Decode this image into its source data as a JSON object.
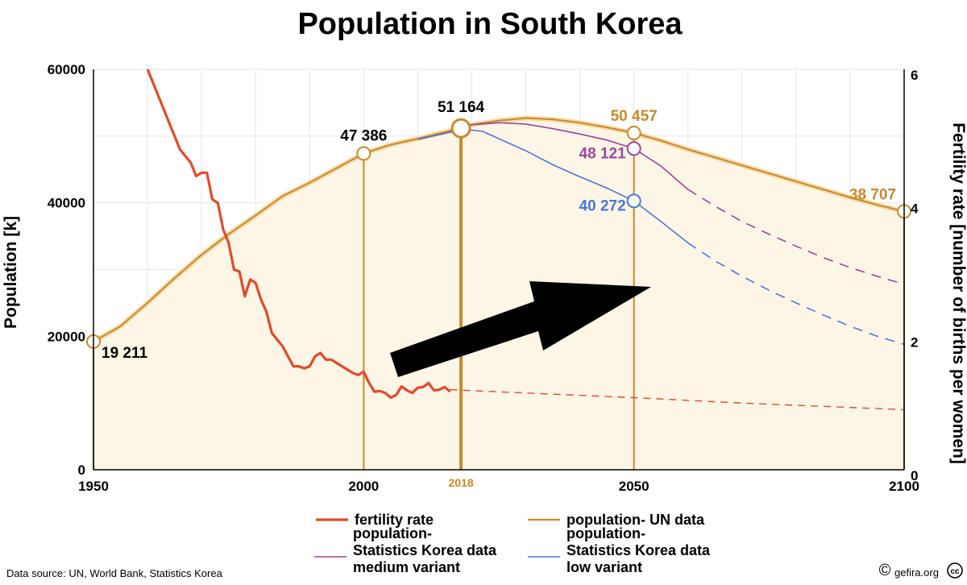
{
  "chart_data": {
    "type": "line",
    "title": "Population in South Korea",
    "xlabel": "",
    "ylabel": "Population [k]",
    "y2label": "Fertility rate [number of births per women]",
    "xlim": [
      1950,
      2100
    ],
    "ylim": [
      0,
      60000
    ],
    "y2lim": [
      0,
      6
    ],
    "x_ticks": [
      1950,
      2000,
      2050,
      2100
    ],
    "x_tick_labels": [
      "1950",
      "2000",
      "2050",
      "2100"
    ],
    "y_ticks": [
      0,
      20000,
      40000,
      60000
    ],
    "y_tick_labels": [
      "0",
      "20000",
      "40000",
      "60000"
    ],
    "y2_ticks": [
      0,
      2,
      4,
      6
    ],
    "y2_tick_labels": [
      "0",
      "2",
      "4",
      "6"
    ],
    "highlight_x": {
      "x": 2018,
      "label": "2018"
    },
    "grid": true,
    "series": [
      {
        "name": "population- UN data",
        "axis": "left",
        "color": "#c8892c",
        "fill": "#fdf6e6",
        "points": [
          [
            1950,
            19211
          ],
          [
            1955,
            21500
          ],
          [
            1960,
            25000
          ],
          [
            1965,
            28700
          ],
          [
            1970,
            32200
          ],
          [
            1975,
            35300
          ],
          [
            1980,
            38100
          ],
          [
            1985,
            41000
          ],
          [
            1990,
            43000
          ],
          [
            1995,
            45200
          ],
          [
            2000,
            47386
          ],
          [
            2005,
            48700
          ],
          [
            2010,
            49600
          ],
          [
            2015,
            50600
          ],
          [
            2018,
            51164
          ],
          [
            2020,
            51700
          ],
          [
            2025,
            52300
          ],
          [
            2030,
            52700
          ],
          [
            2035,
            52500
          ],
          [
            2040,
            52000
          ],
          [
            2045,
            51300
          ],
          [
            2050,
            50457
          ],
          [
            2055,
            49300
          ],
          [
            2060,
            48000
          ],
          [
            2065,
            46800
          ],
          [
            2070,
            45600
          ],
          [
            2075,
            44400
          ],
          [
            2080,
            43200
          ],
          [
            2085,
            42000
          ],
          [
            2090,
            40800
          ],
          [
            2095,
            39700
          ],
          [
            2100,
            38707
          ]
        ]
      },
      {
        "name": "population- Statistics Korea data medium variant",
        "axis": "left",
        "color": "#a0449c",
        "points": [
          [
            2010,
            49500
          ],
          [
            2015,
            50400
          ],
          [
            2018,
            51164
          ],
          [
            2020,
            51700
          ],
          [
            2025,
            52000
          ],
          [
            2030,
            51800
          ],
          [
            2035,
            51100
          ],
          [
            2040,
            50300
          ],
          [
            2045,
            49400
          ],
          [
            2050,
            48121
          ],
          [
            2055,
            45500
          ],
          [
            2060,
            42000
          ]
        ],
        "projection": [
          [
            2060,
            42000
          ],
          [
            2065,
            39500
          ],
          [
            2070,
            37200
          ],
          [
            2075,
            35300
          ],
          [
            2080,
            33500
          ],
          [
            2085,
            31800
          ],
          [
            2090,
            30300
          ],
          [
            2095,
            29000
          ],
          [
            2100,
            27800
          ]
        ]
      },
      {
        "name": "population- Statistics Korea data low variant",
        "axis": "left",
        "color": "#4a78d8",
        "points": [
          [
            2010,
            49500
          ],
          [
            2015,
            50400
          ],
          [
            2018,
            50900
          ],
          [
            2020,
            50900
          ],
          [
            2022,
            50700
          ],
          [
            2025,
            49600
          ],
          [
            2030,
            47800
          ],
          [
            2035,
            45700
          ],
          [
            2040,
            43900
          ],
          [
            2045,
            42200
          ],
          [
            2050,
            40272
          ],
          [
            2055,
            37200
          ],
          [
            2060,
            34000
          ]
        ],
        "projection": [
          [
            2060,
            34000
          ],
          [
            2065,
            31300
          ],
          [
            2070,
            29000
          ],
          [
            2075,
            26900
          ],
          [
            2080,
            25000
          ],
          [
            2085,
            23200
          ],
          [
            2090,
            21500
          ],
          [
            2095,
            20000
          ],
          [
            2100,
            18800
          ]
        ]
      },
      {
        "name": "fertility rate",
        "axis": "right",
        "color": "#e04b2a",
        "points": [
          [
            1960,
            6.0
          ],
          [
            1962,
            5.6
          ],
          [
            1964,
            5.2
          ],
          [
            1966,
            4.8
          ],
          [
            1968,
            4.6
          ],
          [
            1969,
            4.4
          ],
          [
            1970,
            4.45
          ],
          [
            1971,
            4.45
          ],
          [
            1972,
            4.05
          ],
          [
            1973,
            4.0
          ],
          [
            1974,
            3.6
          ],
          [
            1975,
            3.4
          ],
          [
            1976,
            3.0
          ],
          [
            1977,
            2.97
          ],
          [
            1978,
            2.6
          ],
          [
            1979,
            2.85
          ],
          [
            1980,
            2.8
          ],
          [
            1981,
            2.55
          ],
          [
            1982,
            2.37
          ],
          [
            1983,
            2.05
          ],
          [
            1984,
            1.95
          ],
          [
            1985,
            1.85
          ],
          [
            1986,
            1.7
          ],
          [
            1987,
            1.55
          ],
          [
            1988,
            1.55
          ],
          [
            1989,
            1.52
          ],
          [
            1990,
            1.55
          ],
          [
            1991,
            1.7
          ],
          [
            1992,
            1.75
          ],
          [
            1993,
            1.65
          ],
          [
            1994,
            1.65
          ],
          [
            1995,
            1.6
          ],
          [
            1996,
            1.55
          ],
          [
            1997,
            1.5
          ],
          [
            1998,
            1.45
          ],
          [
            1999,
            1.42
          ],
          [
            2000,
            1.47
          ],
          [
            2001,
            1.3
          ],
          [
            2002,
            1.17
          ],
          [
            2003,
            1.18
          ],
          [
            2004,
            1.15
          ],
          [
            2005,
            1.08
          ],
          [
            2006,
            1.12
          ],
          [
            2007,
            1.25
          ],
          [
            2008,
            1.19
          ],
          [
            2009,
            1.15
          ],
          [
            2010,
            1.23
          ],
          [
            2011,
            1.24
          ],
          [
            2012,
            1.3
          ],
          [
            2013,
            1.19
          ],
          [
            2014,
            1.2
          ],
          [
            2015,
            1.24
          ],
          [
            2016,
            1.17
          ]
        ],
        "projection": [
          [
            2016,
            1.2
          ],
          [
            2030,
            1.15
          ],
          [
            2050,
            1.08
          ],
          [
            2070,
            1.0
          ],
          [
            2100,
            0.9
          ]
        ]
      }
    ],
    "annotations": [
      {
        "x": 1950,
        "y": 19211,
        "label": "19 211",
        "color": "#000000"
      },
      {
        "x": 2000,
        "y": 47386,
        "label": "47 386",
        "color": "#000000"
      },
      {
        "x": 2018,
        "y": 51164,
        "label": "51 164",
        "color": "#000000"
      },
      {
        "x": 2050,
        "y": 50457,
        "label": "50 457",
        "color": "#c8892c"
      },
      {
        "x": 2050,
        "y": 48121,
        "label": "48 121",
        "color": "#a0449c"
      },
      {
        "x": 2050,
        "y": 40272,
        "label": "40 272",
        "color": "#4a78d8"
      },
      {
        "x": 2100,
        "y": 38707,
        "label": "38 707",
        "color": "#c8892c"
      }
    ],
    "legend": {
      "placement": "bottom",
      "entries": [
        {
          "key": "fertility",
          "lines": [
            "fertility rate"
          ],
          "color": "#e04b2a"
        },
        {
          "key": "un",
          "lines": [
            "population- UN data"
          ],
          "color": "#c8892c"
        },
        {
          "key": "medium",
          "lines": [
            "population-",
            "Statistics Korea data",
            "medium variant"
          ],
          "color": "#a0449c"
        },
        {
          "key": "low",
          "lines": [
            "population-",
            "Statistics Korea data",
            "low variant"
          ],
          "color": "#4a78d8"
        }
      ]
    }
  },
  "footer": {
    "source": "Data source: UN, World Bank, Statistics Korea",
    "credit": "gefira.org",
    "copyright_symbol": "©",
    "cc_symbol": "cc"
  }
}
